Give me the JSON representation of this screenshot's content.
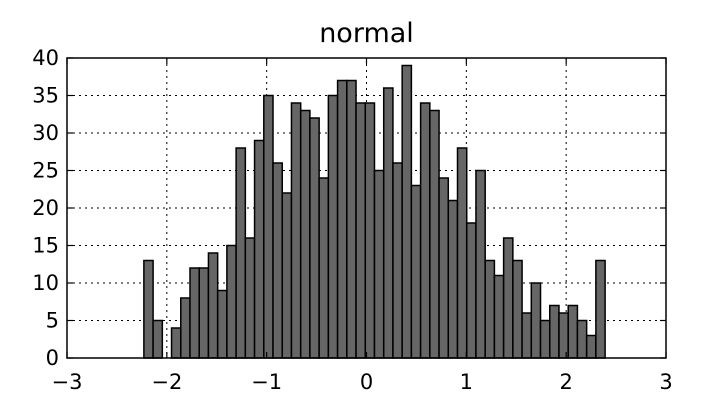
{
  "chart_data": {
    "type": "bar",
    "title": "normal",
    "xlabel": "",
    "ylabel": "",
    "xlim": [
      -3,
      3
    ],
    "ylim": [
      0,
      40
    ],
    "grid": true,
    "bar_color": "#666666",
    "edge_color": "#000000",
    "x_ticks": [
      -3,
      -2,
      -1,
      0,
      1,
      2,
      3
    ],
    "x_tick_labels": [
      "−3",
      "−2",
      "−1",
      "0",
      "1",
      "2",
      "3"
    ],
    "y_ticks": [
      0,
      5,
      10,
      15,
      20,
      25,
      30,
      35,
      40
    ],
    "y_tick_labels": [
      "0",
      "5",
      "10",
      "15",
      "20",
      "25",
      "30",
      "35",
      "40"
    ],
    "bin_start": -2.23,
    "bin_width": 0.0924,
    "counts": [
      13,
      5,
      0,
      4,
      8,
      12,
      12,
      14,
      9,
      15,
      28,
      16,
      29,
      35,
      26,
      22,
      34,
      33,
      32,
      24,
      35,
      37,
      37,
      34,
      34,
      25,
      36,
      26,
      39,
      23,
      34,
      33,
      24,
      21,
      28,
      18,
      25,
      13,
      11,
      16,
      13,
      6,
      10,
      5,
      7,
      6,
      7,
      5,
      3,
      13
    ]
  }
}
